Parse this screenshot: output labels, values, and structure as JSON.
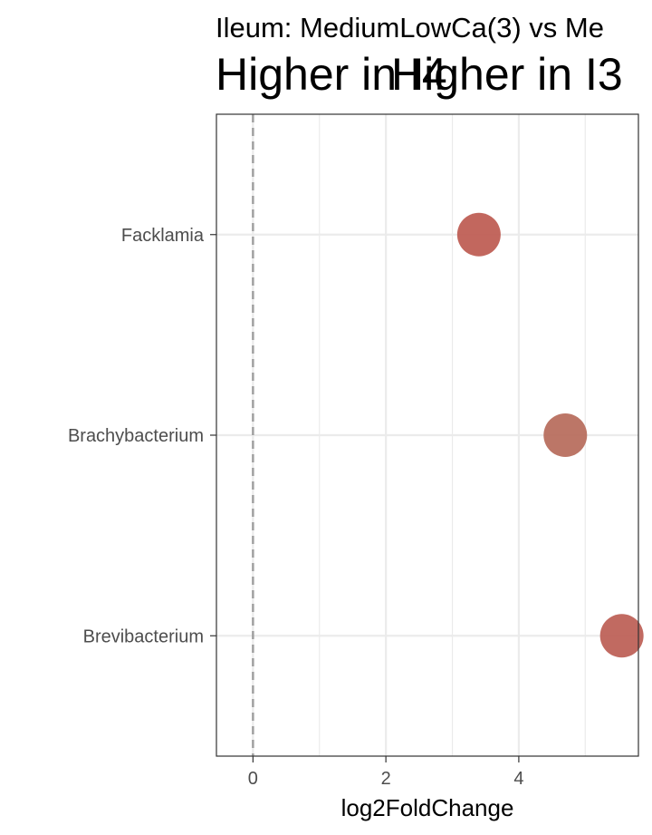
{
  "chart_data": {
    "type": "scatter",
    "title": "Ileum: MediumLowCa(3) vs Me",
    "annotations": [
      "Higher in I4",
      "Higher in I3"
    ],
    "xlabel": "log2FoldChange",
    "ylabel": "",
    "categories": [
      "Facklamia",
      "Brachybacterium",
      "Brevibacterium"
    ],
    "points": [
      {
        "category": "Facklamia",
        "x": 3.4,
        "color": "#BF5F55"
      },
      {
        "category": "Brachybacterium",
        "x": 4.7,
        "color": "#B86F5F"
      },
      {
        "category": "Brevibacterium",
        "x": 5.55,
        "color": "#BE6258"
      }
    ],
    "xlim": [
      -0.55,
      5.8
    ],
    "x_ticks": [
      0,
      2,
      4
    ],
    "x_tick_labels": [
      "0",
      "2",
      "4"
    ],
    "reference_line_x": 0,
    "grid": true,
    "legend": "none"
  }
}
